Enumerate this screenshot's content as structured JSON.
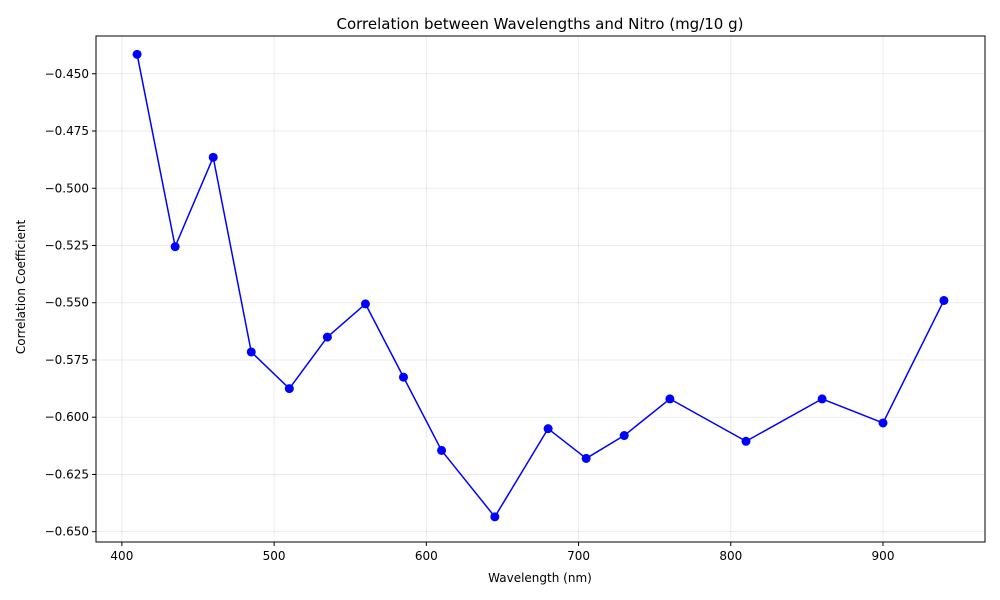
{
  "chart_data": {
    "type": "line",
    "title": "Correlation between Wavelengths and Nitro (mg/10 g)",
    "xlabel": "Wavelength (nm)",
    "ylabel": "Correlation Coefficient",
    "xlim": [
      383,
      967
    ],
    "ylim": [
      -0.6545,
      -0.4335
    ],
    "xticks": [
      400,
      500,
      600,
      700,
      800,
      900
    ],
    "xtick_labels": [
      "400",
      "500",
      "600",
      "700",
      "800",
      "900"
    ],
    "yticks": [
      -0.45,
      -0.475,
      -0.5,
      -0.525,
      -0.55,
      -0.575,
      -0.6,
      -0.625,
      -0.65
    ],
    "ytick_labels": [
      "−0.450",
      "−0.475",
      "−0.500",
      "−0.525",
      "−0.550",
      "−0.575",
      "−0.600",
      "−0.625",
      "−0.650"
    ],
    "grid": true,
    "line_color": "#0000ff",
    "series": [
      {
        "x": [
          410,
          435,
          460,
          485,
          510,
          535,
          560,
          585,
          610,
          645,
          680,
          705,
          730,
          760,
          810,
          860,
          900,
          940
        ],
        "y": [
          -0.4415,
          -0.5255,
          -0.4865,
          -0.5715,
          -0.5875,
          -0.565,
          -0.5505,
          -0.5825,
          -0.6145,
          -0.6435,
          -0.605,
          -0.618,
          -0.608,
          -0.592,
          -0.6105,
          -0.592,
          -0.6025,
          -0.549
        ]
      }
    ]
  }
}
